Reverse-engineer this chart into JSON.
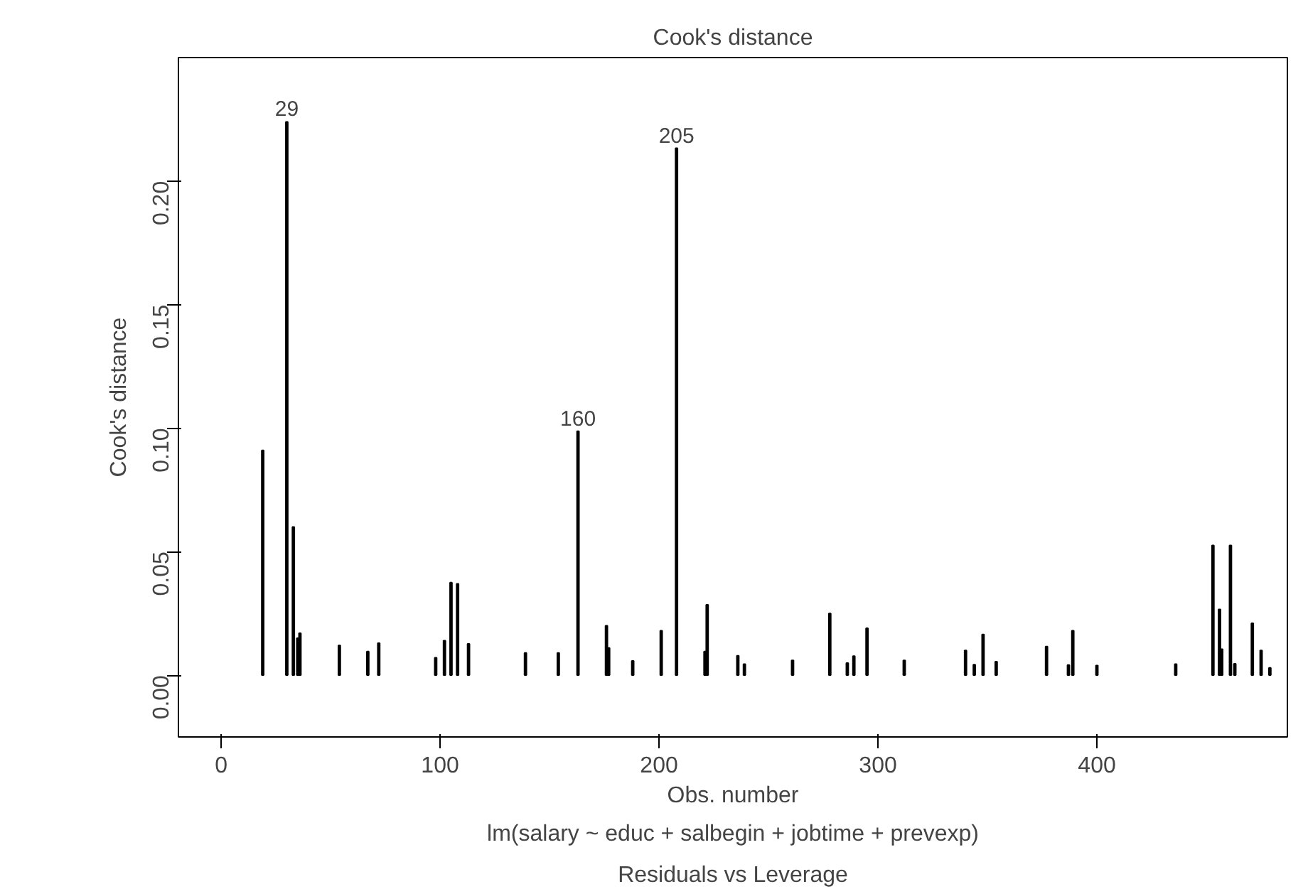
{
  "chart_data": {
    "type": "bar",
    "title": "Cook's distance",
    "xlabel": "Obs. number",
    "ylabel": "Cook's distance",
    "annotations": [
      {
        "text": "29",
        "x": 30,
        "y": 0.224
      },
      {
        "text": "160",
        "x": 163,
        "y": 0.0988
      },
      {
        "text": "205",
        "x": 208,
        "y": 0.2133
      },
      "lm(salary ~ educ + salbegin + jobtime + prevexp)",
      "Residuals vs Leverage"
    ],
    "x": [
      19,
      30,
      33,
      35,
      36,
      54,
      67,
      72,
      98,
      102,
      105,
      108,
      113,
      139,
      154,
      163,
      176,
      177,
      188,
      201,
      208,
      221,
      222,
      236,
      239,
      261,
      278,
      286,
      289,
      295,
      312,
      340,
      344,
      348,
      354,
      377,
      387,
      389,
      400,
      436,
      453,
      456,
      457,
      461,
      463,
      471,
      475,
      479
    ],
    "values": [
      0.091,
      0.224,
      0.06,
      0.015,
      0.017,
      0.012,
      0.0096,
      0.013,
      0.0071,
      0.014,
      0.0375,
      0.037,
      0.0127,
      0.009,
      0.009,
      0.0988,
      0.02,
      0.011,
      0.0058,
      0.018,
      0.2133,
      0.0096,
      0.0285,
      0.0079,
      0.0045,
      0.006,
      0.025,
      0.0049,
      0.0077,
      0.019,
      0.006,
      0.01,
      0.0043,
      0.0165,
      0.0055,
      0.0116,
      0.0041,
      0.018,
      0.0039,
      0.0045,
      0.0525,
      0.0266,
      0.0105,
      0.0525,
      0.0046,
      0.021,
      0.01,
      0.003
    ],
    "color": "#000000",
    "xlim": [
      -19.5,
      487
    ],
    "ylim": [
      -0.025,
      0.25
    ],
    "xticks": [
      0,
      100,
      200,
      300,
      400
    ],
    "yticks": [
      {
        "value": 0,
        "label": "0.00"
      },
      {
        "value": 0.05,
        "label": "0.05"
      },
      {
        "value": 0.1,
        "label": "0.10"
      },
      {
        "value": 0.15,
        "label": "0.15"
      },
      {
        "value": 0.2,
        "label": "0.20"
      }
    ],
    "grid": false
  }
}
